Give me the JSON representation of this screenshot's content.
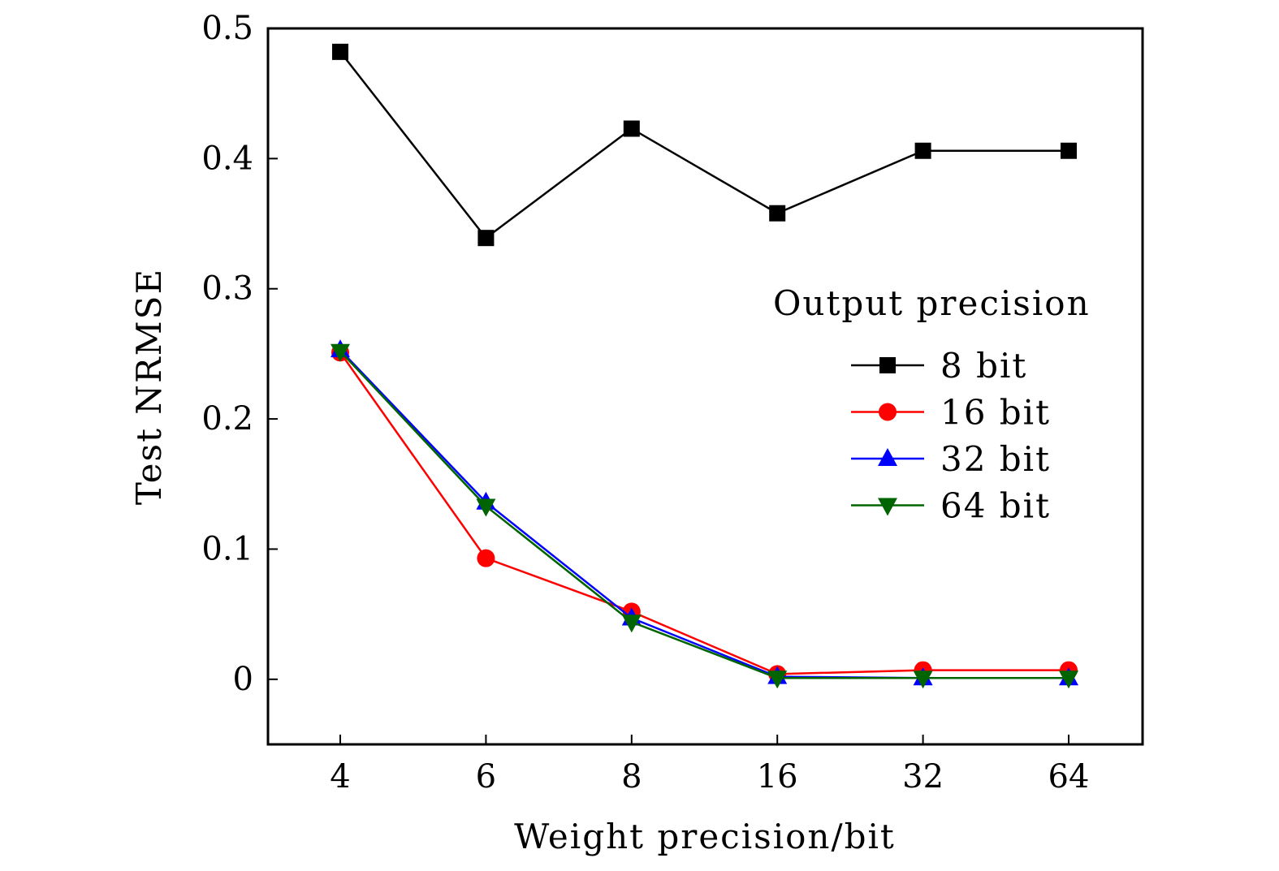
{
  "chart_data": {
    "type": "line",
    "title": "",
    "xlabel": "Weight precision/bit",
    "ylabel": "Test NRMSE",
    "categories": [
      "4",
      "6",
      "8",
      "16",
      "32",
      "64"
    ],
    "ylim": [
      -0.05,
      0.5
    ],
    "yticks": [
      "0",
      "0.1",
      "0.2",
      "0.3",
      "0.4",
      "0.5"
    ],
    "ytick_values": [
      0,
      0.1,
      0.2,
      0.3,
      0.4,
      0.5
    ],
    "grid": false,
    "legend": {
      "title": "Output precision",
      "placement": "right"
    },
    "series": [
      {
        "name": "8 bit",
        "color": "#000000",
        "marker": "square",
        "values": [
          0.482,
          0.339,
          0.423,
          0.358,
          0.406,
          0.406
        ]
      },
      {
        "name": "16 bit",
        "color": "#ff0000",
        "marker": "circle",
        "values": [
          0.251,
          0.093,
          0.052,
          0.004,
          0.007,
          0.007
        ]
      },
      {
        "name": "32 bit",
        "color": "#0000ff",
        "marker": "triangle-up",
        "values": [
          0.253,
          0.136,
          0.047,
          0.002,
          0.001,
          0.001
        ]
      },
      {
        "name": "64 bit",
        "color": "#006400",
        "marker": "triangle-down",
        "values": [
          0.252,
          0.133,
          0.044,
          0.001,
          0.001,
          0.001
        ]
      }
    ]
  }
}
